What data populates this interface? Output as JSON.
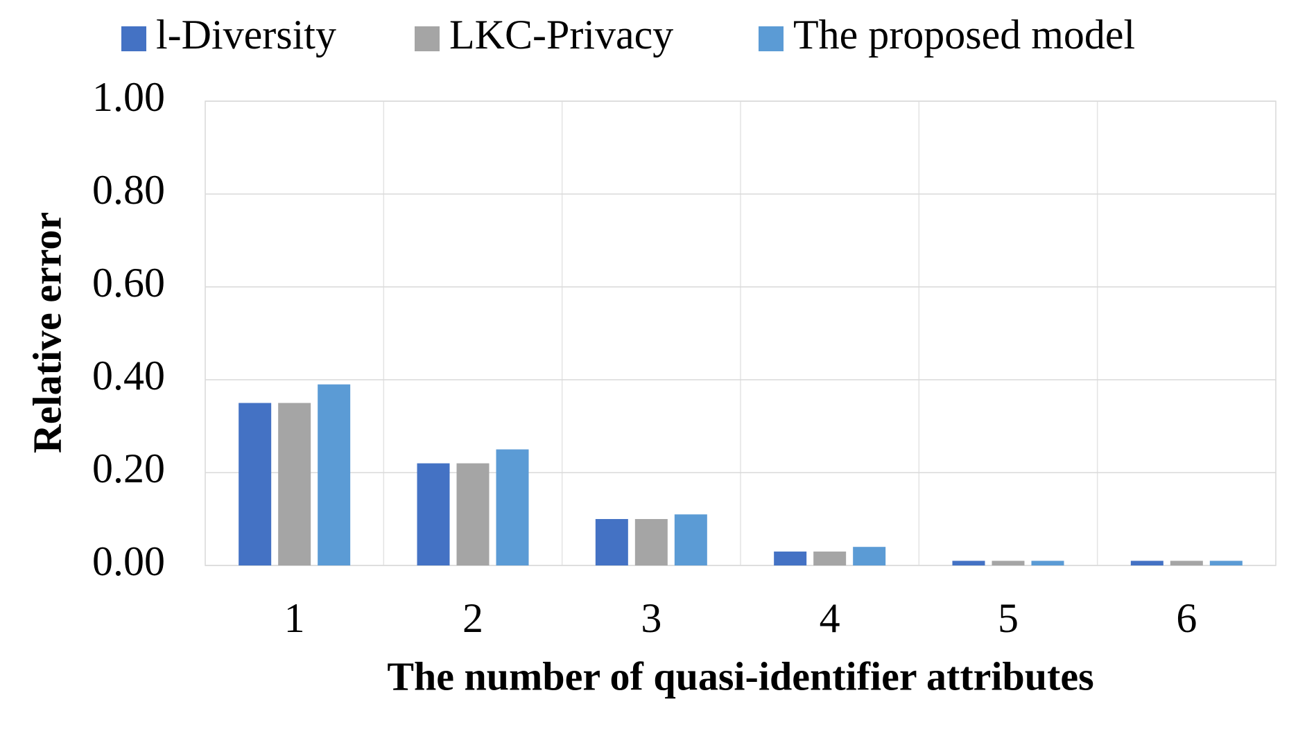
{
  "chart_data": {
    "type": "bar",
    "x_label": "The number of quasi-identifier attributes",
    "y_label": "Relative error",
    "categories": [
      "1",
      "2",
      "3",
      "4",
      "5",
      "6"
    ],
    "series": [
      {
        "name": "l-Diversity",
        "color": "#4472c4",
        "values": [
          0.35,
          0.22,
          0.1,
          0.03,
          0.01,
          0.01
        ]
      },
      {
        "name": "LKC-Privacy",
        "color": "#a5a5a5",
        "values": [
          0.35,
          0.22,
          0.1,
          0.03,
          0.01,
          0.01
        ]
      },
      {
        "name": "The proposed model",
        "color": "#5b9bd5",
        "values": [
          0.39,
          0.25,
          0.11,
          0.04,
          0.01,
          0.01
        ]
      }
    ],
    "ylim": [
      0,
      1
    ],
    "yticks": [
      {
        "value": 0,
        "label": "0.00"
      },
      {
        "value": 0.2,
        "label": "0.20"
      },
      {
        "value": 0.4,
        "label": "0.40"
      },
      {
        "value": 0.6,
        "label": "0.60"
      },
      {
        "value": 0.8,
        "label": "0.80"
      },
      {
        "value": 1,
        "label": "1.00"
      }
    ],
    "grid": true,
    "legend": "top"
  }
}
